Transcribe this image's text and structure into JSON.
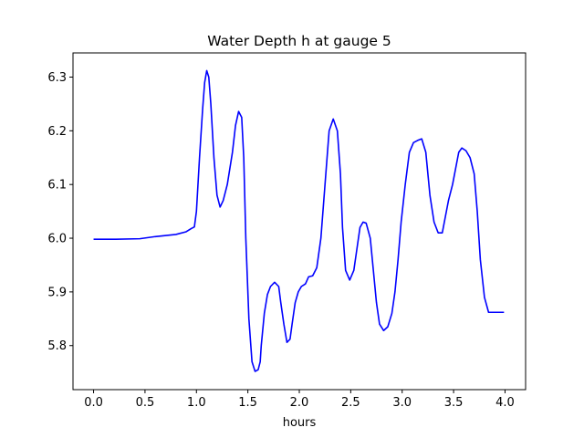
{
  "chart_data": {
    "type": "line",
    "title": "Water Depth h at gauge 5",
    "xlabel": "hours",
    "ylabel": "",
    "xlim": [
      -0.2,
      4.2
    ],
    "ylim": [
      5.718,
      6.345
    ],
    "xticks": [
      0.0,
      0.5,
      1.0,
      1.5,
      2.0,
      2.5,
      3.0,
      3.5,
      4.0
    ],
    "xtick_labels": [
      "0.0",
      "0.5",
      "1.0",
      "1.5",
      "2.0",
      "2.5",
      "3.0",
      "3.5",
      "4.0"
    ],
    "yticks": [
      5.8,
      5.9,
      6.0,
      6.1,
      6.2,
      6.3
    ],
    "ytick_labels": [
      "5.8",
      "5.9",
      "6.0",
      "6.1",
      "6.2",
      "6.3"
    ],
    "grid": false,
    "line_color": "#0000ff",
    "series": [
      {
        "x": [
          0.0,
          0.2,
          0.45,
          0.6,
          0.8,
          0.9,
          0.95,
          0.98,
          1.0,
          1.03,
          1.06,
          1.08,
          1.1,
          1.12,
          1.14,
          1.17,
          1.2,
          1.23,
          1.26,
          1.3,
          1.35,
          1.38,
          1.41,
          1.44,
          1.46,
          1.48,
          1.51,
          1.54,
          1.57,
          1.6,
          1.62,
          1.63,
          1.66,
          1.69,
          1.72,
          1.76,
          1.8,
          1.82,
          1.85,
          1.88,
          1.91,
          1.93,
          1.96,
          1.99,
          2.02,
          2.06,
          2.09,
          2.13,
          2.17,
          2.21,
          2.25,
          2.29,
          2.33,
          2.37,
          2.4,
          2.42,
          2.45,
          2.49,
          2.53,
          2.56,
          2.59,
          2.62,
          2.65,
          2.69,
          2.72,
          2.75,
          2.78,
          2.82,
          2.86,
          2.9,
          2.93,
          2.96,
          2.99,
          3.03,
          3.07,
          3.11,
          3.15,
          3.19,
          3.23,
          3.27,
          3.31,
          3.35,
          3.39,
          3.42,
          3.45,
          3.49,
          3.52,
          3.55,
          3.58,
          3.62,
          3.66,
          3.7,
          3.73,
          3.76,
          3.8,
          3.84,
          3.88,
          3.92,
          3.96,
          3.99
        ],
        "y": [
          5.998,
          5.998,
          5.999,
          6.003,
          6.007,
          6.012,
          6.018,
          6.021,
          6.05,
          6.15,
          6.24,
          6.29,
          6.312,
          6.3,
          6.25,
          6.15,
          6.08,
          6.058,
          6.07,
          6.1,
          6.16,
          6.21,
          6.236,
          6.225,
          6.15,
          6.0,
          5.85,
          5.77,
          5.752,
          5.755,
          5.77,
          5.8,
          5.86,
          5.895,
          5.91,
          5.918,
          5.91,
          5.88,
          5.84,
          5.806,
          5.812,
          5.84,
          5.88,
          5.9,
          5.91,
          5.915,
          5.928,
          5.93,
          5.945,
          6.0,
          6.1,
          6.2,
          6.222,
          6.2,
          6.12,
          6.02,
          5.94,
          5.922,
          5.94,
          5.98,
          6.02,
          6.03,
          6.028,
          6.0,
          5.94,
          5.88,
          5.84,
          5.828,
          5.835,
          5.86,
          5.9,
          5.96,
          6.03,
          6.1,
          6.16,
          6.178,
          6.182,
          6.185,
          6.16,
          6.08,
          6.03,
          6.01,
          6.01,
          6.04,
          6.07,
          6.1,
          6.13,
          6.16,
          6.168,
          6.163,
          6.15,
          6.12,
          6.05,
          5.96,
          5.89,
          5.862,
          5.862,
          5.862,
          5.862,
          5.862
        ]
      }
    ]
  }
}
